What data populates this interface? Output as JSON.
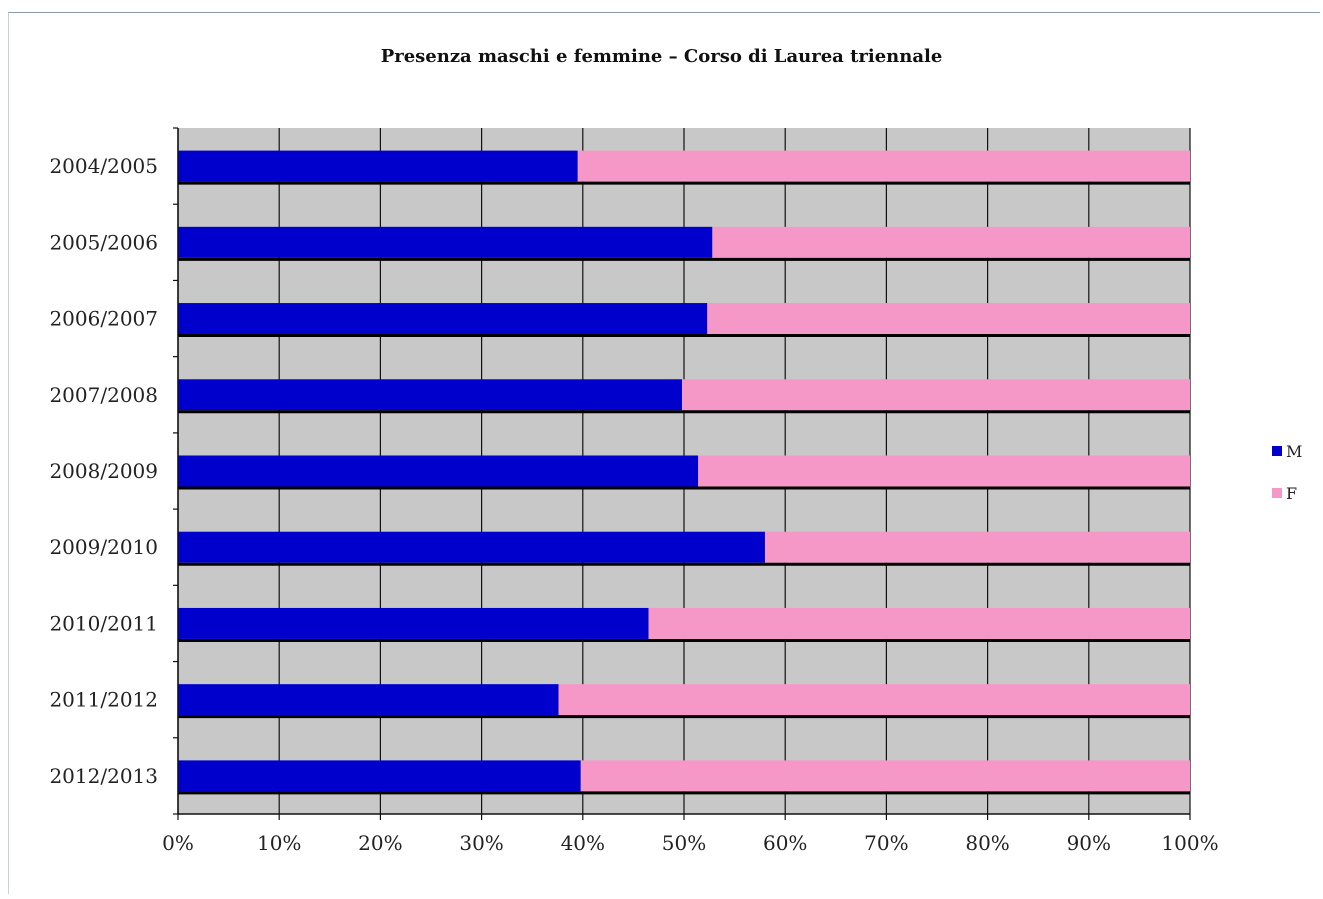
{
  "chart_data": {
    "type": "bar",
    "orientation": "horizontal",
    "stacked": "percent",
    "title": "Presenza maschi e femmine – Corso di Laurea triennale",
    "categories": [
      "2004/2005",
      "2005/2006",
      "2006/2007",
      "2007/2008",
      "2008/2009",
      "2009/2010",
      "2010/2011",
      "2011/2012",
      "2012/2013"
    ],
    "series": [
      {
        "name": "M",
        "color": "#0000cc",
        "values": [
          39.5,
          52.8,
          52.3,
          49.8,
          51.4,
          58.0,
          46.5,
          37.6,
          39.8
        ]
      },
      {
        "name": "F",
        "color": "#f598c8",
        "values": [
          60.5,
          47.2,
          47.7,
          50.2,
          48.6,
          42.0,
          53.5,
          62.4,
          60.2
        ]
      }
    ],
    "x_ticks": [
      "0%",
      "10%",
      "20%",
      "30%",
      "40%",
      "50%",
      "60%",
      "70%",
      "80%",
      "90%",
      "100%"
    ],
    "xlim": [
      0,
      100
    ],
    "grid": true,
    "plot_background": "#c8c8c8",
    "legend_position": "right"
  }
}
